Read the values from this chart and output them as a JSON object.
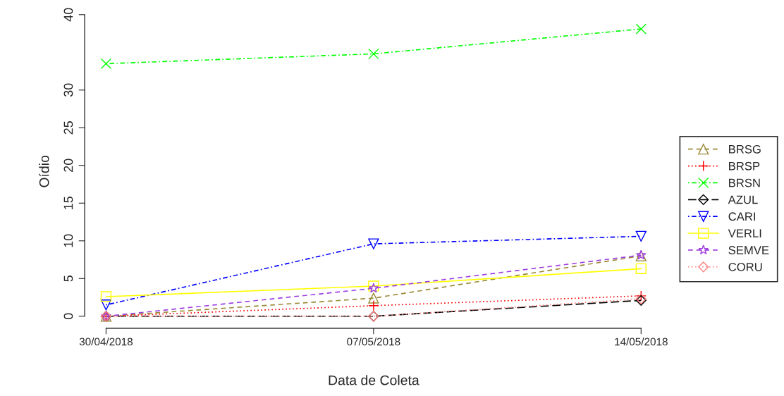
{
  "chart_data": {
    "type": "line",
    "xlabel": "Data de Coleta",
    "ylabel": "Oídio",
    "categories": [
      "30/04/2018",
      "07/05/2018",
      "14/05/2018"
    ],
    "ylim": [
      -1.6,
      40
    ],
    "yticks": [
      0,
      5,
      10,
      15,
      20,
      25,
      30,
      40
    ],
    "grid": false,
    "legend": "right",
    "series": [
      {
        "name": "BRSG",
        "color": "#998a35",
        "marker": "triangle",
        "line_style": "dashed",
        "values": [
          0,
          2.4,
          8.0
        ]
      },
      {
        "name": "BRSP",
        "color": "#ff0000",
        "marker": "plus",
        "line_style": "dotted",
        "values": [
          0,
          1.4,
          2.7
        ]
      },
      {
        "name": "BRSN",
        "color": "#00ff00",
        "marker": "cross",
        "line_style": "dashdot",
        "values": [
          33.5,
          34.8,
          38.1
        ]
      },
      {
        "name": "AZUL",
        "color": "#000000",
        "marker": "diamond",
        "line_style": "longdash",
        "values": [
          0,
          0,
          2.1
        ]
      },
      {
        "name": "CARI",
        "color": "#0000ff",
        "marker": "triangle_down",
        "line_style": "dashdot",
        "values": [
          1.5,
          9.6,
          10.6
        ]
      },
      {
        "name": "VERLI",
        "color": "#ffff00",
        "marker": "square",
        "line_style": "solid",
        "values": [
          2.6,
          4.0,
          6.3
        ]
      },
      {
        "name": "SEMVE",
        "color": "#a040e0",
        "marker": "star",
        "line_style": "dashed",
        "values": [
          0,
          3.7,
          8.1
        ]
      },
      {
        "name": "CORU",
        "color": "#ff8080",
        "marker": "diamond",
        "line_style": "dotted",
        "values": [
          0,
          0,
          2.3
        ]
      }
    ]
  }
}
